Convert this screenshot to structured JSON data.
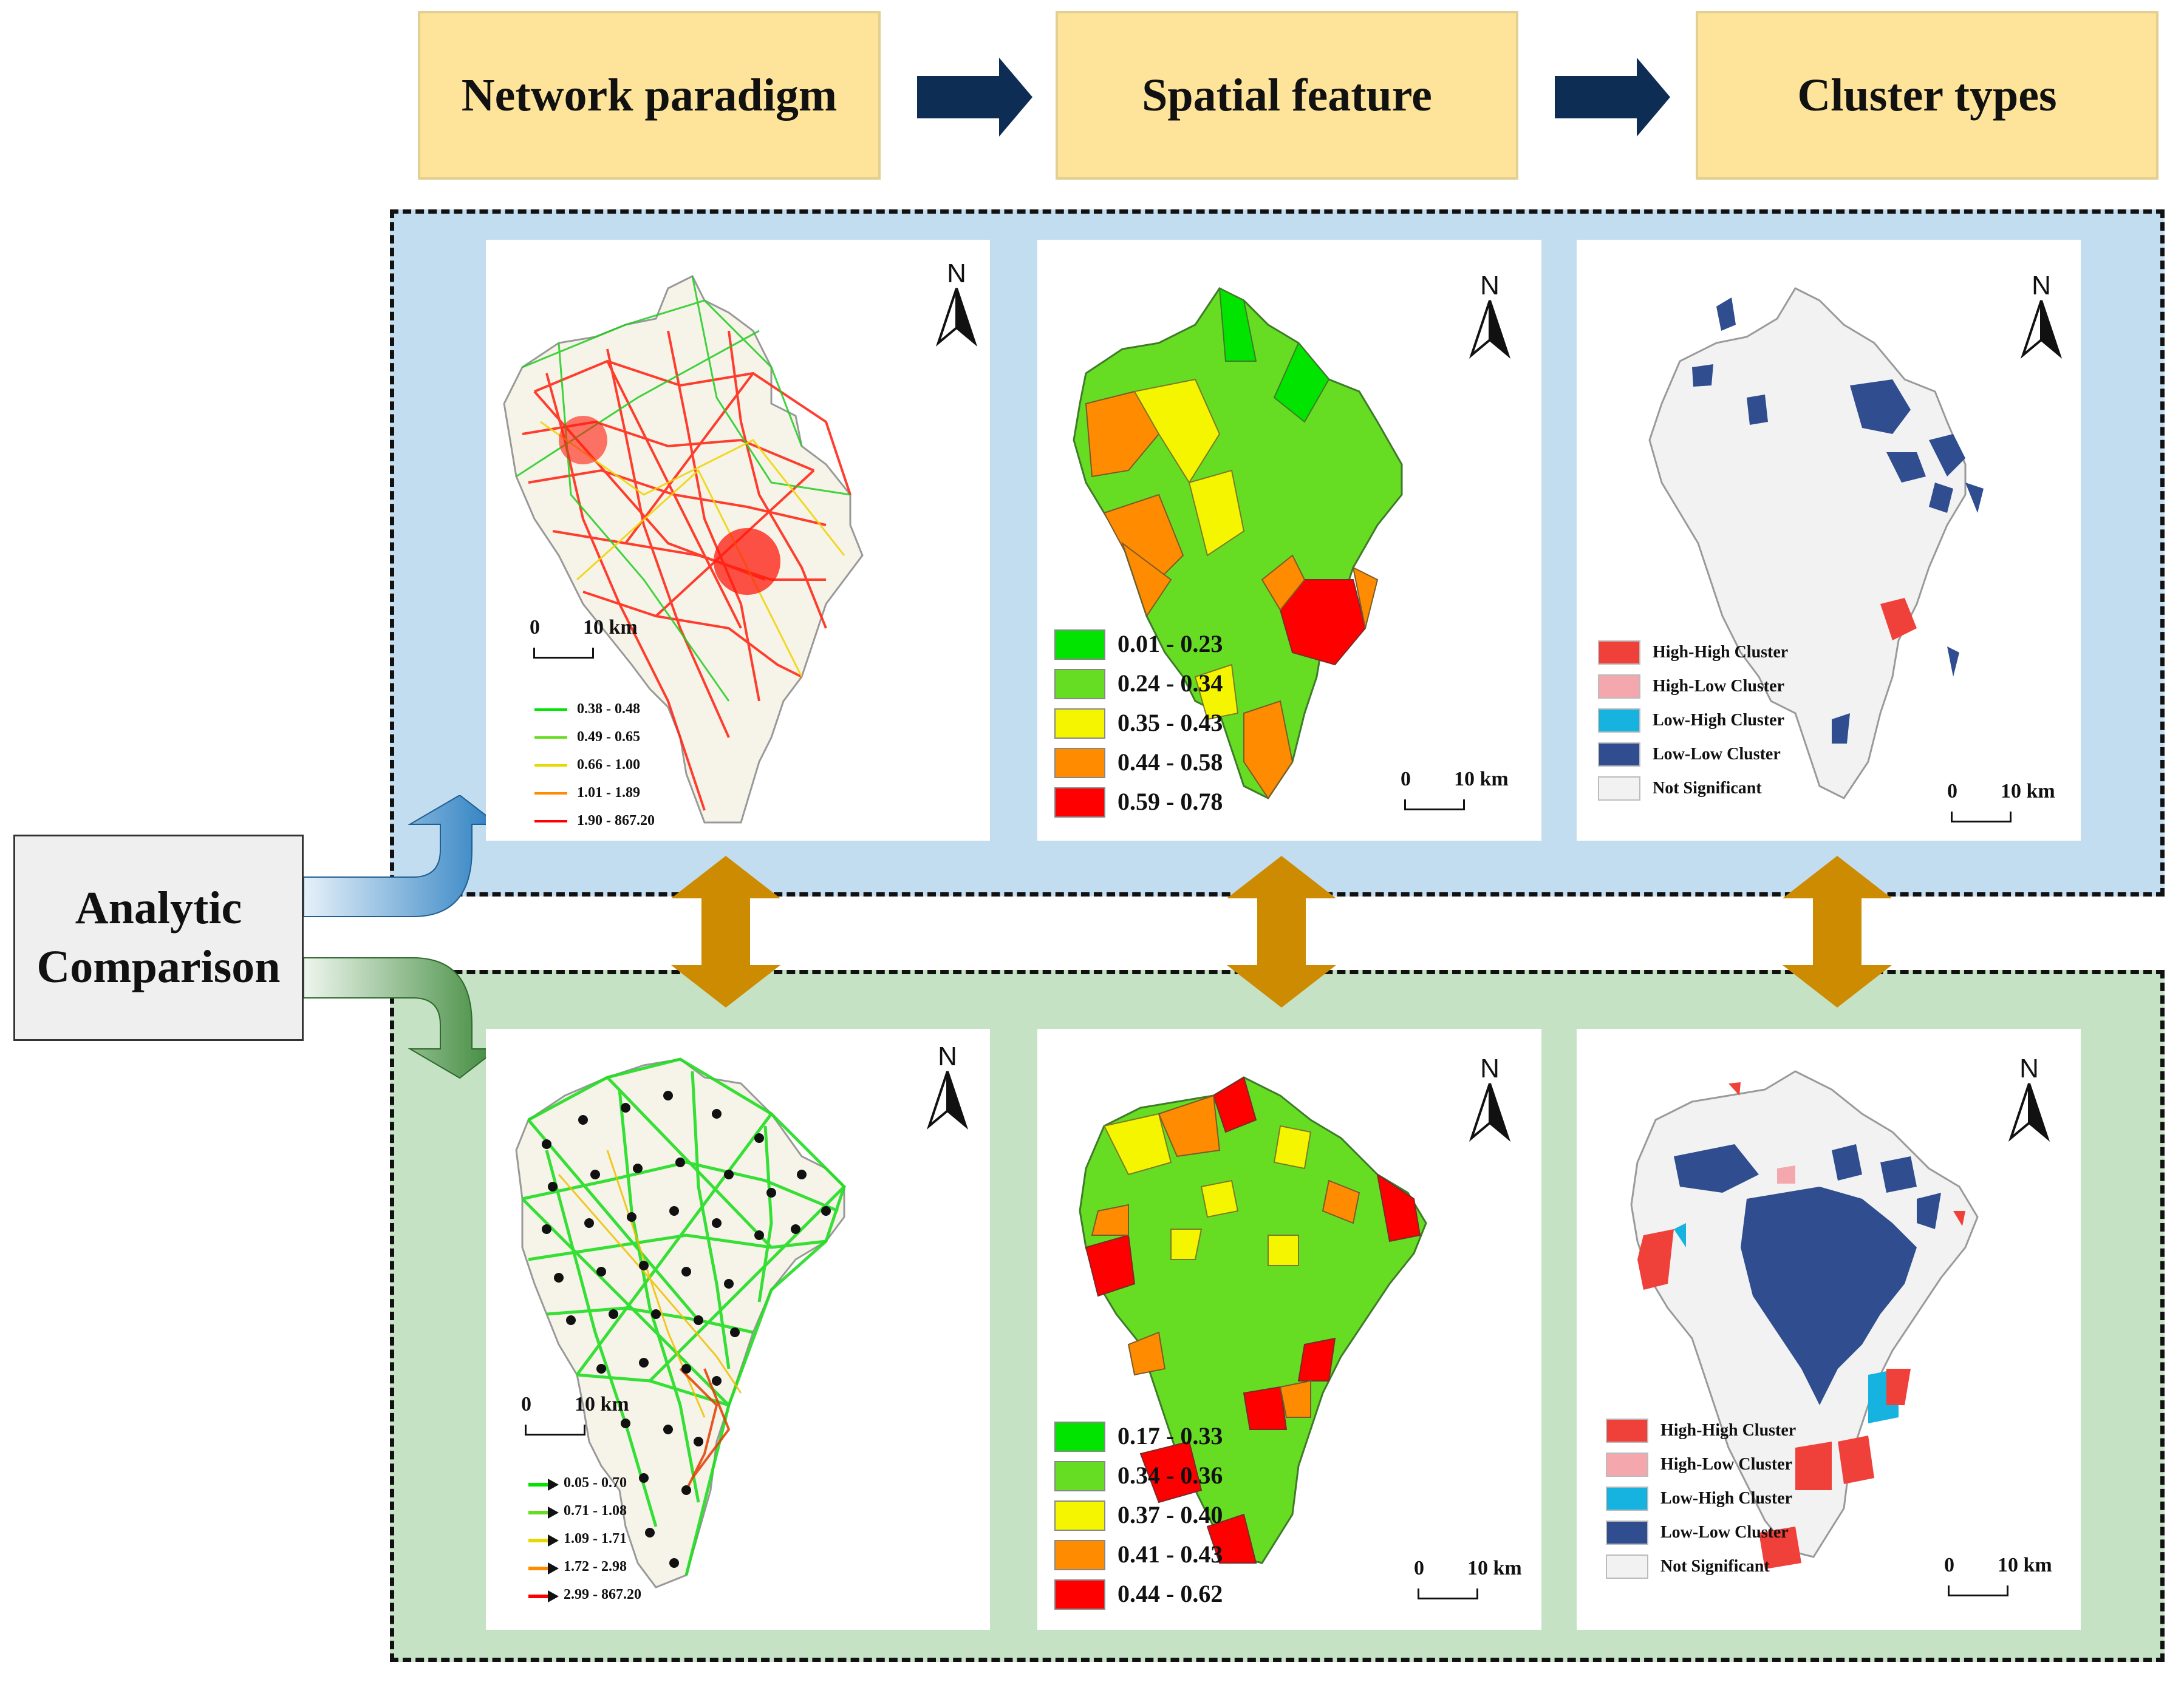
{
  "steps": {
    "network": "Network paradigm",
    "spatial": "Spatial feature",
    "cluster": "Cluster types"
  },
  "comparison": {
    "line1": "Analytic",
    "line2": "Comparison"
  },
  "north_label": "N",
  "scale": {
    "zero": "0",
    "distance": "10 km"
  },
  "top_row": {
    "network_legend": [
      "0.38 - 0.48",
      "0.49 - 0.65",
      "0.66 - 1.00",
      "1.01 - 1.89",
      "1.90 - 867.20"
    ],
    "spatial_legend": [
      "0.01 - 0.23",
      "0.24 - 0.34",
      "0.35 - 0.43",
      "0.44 - 0.58",
      "0.59 - 0.78"
    ]
  },
  "bottom_row": {
    "network_legend": [
      "0.05 - 0.70",
      "0.71 - 1.08",
      "1.09 - 1.71",
      "1.72 - 2.98",
      "2.99 - 867.20"
    ],
    "spatial_legend": [
      "0.17 - 0.33",
      "0.34 - 0.36",
      "0.37 - 0.40",
      "0.41 - 0.43",
      "0.44 - 0.62"
    ]
  },
  "cluster_legend": [
    "High-High Cluster",
    "High-Low Cluster",
    "Low-High Cluster",
    "Low-Low Cluster",
    "Not Significant"
  ],
  "colors": {
    "class_scale": [
      "#00e400",
      "#66dd22",
      "#f5f500",
      "#ff8c00",
      "#ff0000"
    ],
    "cluster": [
      "#f0403a",
      "#f4a8ae",
      "#16b3e0",
      "#2f4d8f",
      "#f2f2f2"
    ],
    "top_panel_bg": "#c3ddf0",
    "bottom_panel_bg": "#c6e2c4",
    "step_box": "#fde49a",
    "flow_arrow": "#0e2d55",
    "link_arrow": "#cc8b00"
  },
  "icons": [
    "arrow-right-icon",
    "north-arrow-icon",
    "double-arrow-icon"
  ]
}
